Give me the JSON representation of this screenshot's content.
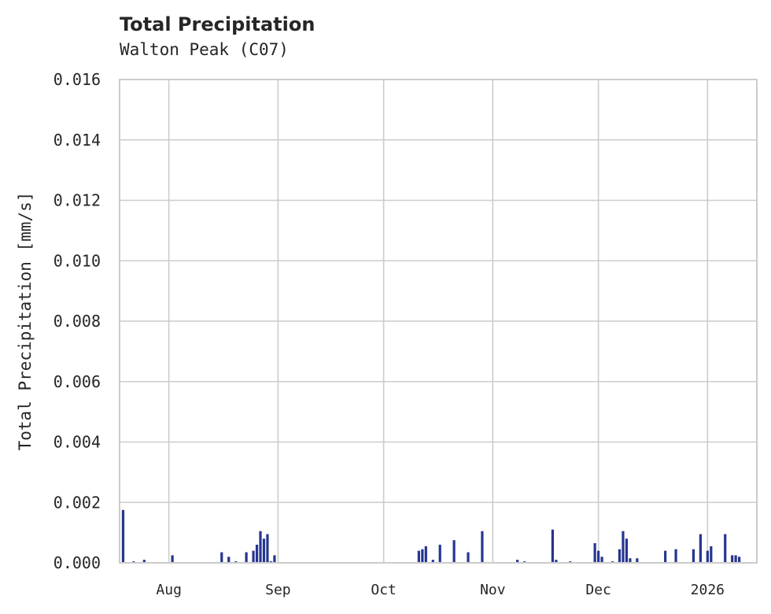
{
  "chart_data": {
    "type": "bar",
    "title": "Total Precipitation",
    "subtitle": "Walton Peak (C07)",
    "xlabel": "",
    "ylabel": "Total Precipitation [mm/s]",
    "ylim": [
      0,
      0.016
    ],
    "yticks": [
      "0.000",
      "0.002",
      "0.004",
      "0.006",
      "0.008",
      "0.010",
      "0.012",
      "0.014",
      "0.016"
    ],
    "xticks": [
      "Aug",
      "Sep",
      "Oct",
      "Nov",
      "Dec",
      "2026"
    ],
    "grid": true,
    "legend": null,
    "bar_color": "#263590",
    "x_range": [
      "2025-07-18",
      "2026-01-15"
    ],
    "x": [
      "2025-07-19",
      "2025-07-22",
      "2025-07-25",
      "2025-08-02",
      "2025-08-16",
      "2025-08-18",
      "2025-08-20",
      "2025-08-23",
      "2025-08-25",
      "2025-08-26",
      "2025-08-27",
      "2025-08-28",
      "2025-08-29",
      "2025-08-30",
      "2025-08-31",
      "2025-10-11",
      "2025-10-12",
      "2025-10-13",
      "2025-10-15",
      "2025-10-17",
      "2025-10-21",
      "2025-10-25",
      "2025-10-29",
      "2025-11-08",
      "2025-11-10",
      "2025-11-18",
      "2025-11-19",
      "2025-11-23",
      "2025-11-30",
      "2025-12-01",
      "2025-12-02",
      "2025-12-05",
      "2025-12-07",
      "2025-12-08",
      "2025-12-09",
      "2025-12-10",
      "2025-12-12",
      "2025-12-20",
      "2025-12-23",
      "2025-12-28",
      "2025-12-30",
      "2026-01-01",
      "2026-01-02",
      "2026-01-06",
      "2026-01-08",
      "2026-01-09",
      "2026-01-10"
    ],
    "values": [
      0.00175,
      5e-05,
      0.0001,
      0.00025,
      0.00035,
      0.0002,
      5e-05,
      0.00035,
      0.0004,
      0.0006,
      0.00105,
      0.0008,
      0.00095,
      5e-05,
      0.00025,
      0.0004,
      0.00045,
      0.00055,
      0.0001,
      0.0006,
      0.00075,
      0.00035,
      0.00105,
      0.0001,
      5e-05,
      0.0011,
      0.0001,
      5e-05,
      0.00065,
      0.0004,
      0.0002,
      5e-05,
      0.00045,
      0.00105,
      0.0008,
      0.00015,
      0.00015,
      0.0004,
      0.00045,
      0.00045,
      0.00095,
      0.0004,
      0.00055,
      0.00095,
      0.00025,
      0.00025,
      0.0002
    ]
  }
}
